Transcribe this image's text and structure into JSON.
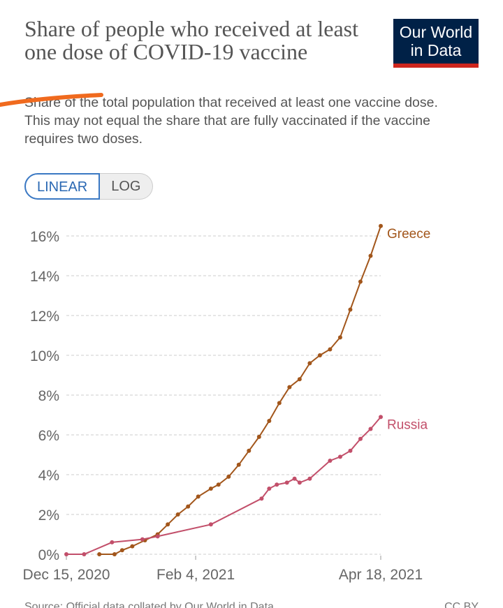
{
  "chart_data": {
    "type": "line",
    "title": "Share of people who received at least one dose of COVID-19 vaccine",
    "subtitle": "Share of the total population that received at least one vaccine dose. This may not equal the share that are fully vaccinated if the vaccine requires two doses.",
    "logo": "Our World in Data",
    "buttons": [
      "LINEAR",
      "LOG"
    ],
    "source": "Source: Official data collated by Our World in Data",
    "license": "CC BY",
    "xlim": [
      "2020-12-15",
      "2021-04-18"
    ],
    "xticks": [
      {
        "value": "2020-12-15",
        "label": "Dec 15, 2020"
      },
      {
        "value": "2021-02-04",
        "label": "Feb 4, 2021"
      },
      {
        "value": "2021-04-18",
        "label": "Apr 18, 2021"
      }
    ],
    "ylim": [
      0,
      16.5
    ],
    "yticks": [
      {
        "value": 0,
        "label": "0%"
      },
      {
        "value": 2,
        "label": "2%"
      },
      {
        "value": 4,
        "label": "4%"
      },
      {
        "value": 6,
        "label": "6%"
      },
      {
        "value": 8,
        "label": "8%"
      },
      {
        "value": 10,
        "label": "10%"
      },
      {
        "value": 12,
        "label": "12%"
      },
      {
        "value": 14,
        "label": "14%"
      },
      {
        "value": 16,
        "label": "16%"
      }
    ],
    "grid": true,
    "series": [
      {
        "name": "Greece",
        "color": "#a2561b",
        "x": [
          "2020-12-28",
          "2021-01-03",
          "2021-01-06",
          "2021-01-10",
          "2021-01-15",
          "2021-01-20",
          "2021-01-24",
          "2021-01-28",
          "2021-02-01",
          "2021-02-05",
          "2021-02-10",
          "2021-02-13",
          "2021-02-17",
          "2021-02-21",
          "2021-02-25",
          "2021-03-01",
          "2021-03-05",
          "2021-03-09",
          "2021-03-13",
          "2021-03-17",
          "2021-03-21",
          "2021-03-25",
          "2021-03-29",
          "2021-04-02",
          "2021-04-06",
          "2021-04-10",
          "2021-04-14",
          "2021-04-18"
        ],
        "values": [
          0,
          0,
          0.2,
          0.4,
          0.7,
          1.0,
          1.5,
          2.0,
          2.4,
          2.9,
          3.3,
          3.5,
          3.9,
          4.5,
          5.2,
          5.9,
          6.7,
          7.6,
          8.4,
          8.8,
          9.6,
          10.0,
          10.3,
          10.9,
          12.3,
          13.7,
          15.0,
          16.5
        ]
      },
      {
        "name": "Russia",
        "color": "#c24f6a",
        "x": [
          "2020-12-15",
          "2020-12-22",
          "2021-01-02",
          "2021-01-14",
          "2021-01-20",
          "2021-02-10",
          "2021-03-02",
          "2021-03-05",
          "2021-03-08",
          "2021-03-12",
          "2021-03-15",
          "2021-03-17",
          "2021-03-21",
          "2021-03-29",
          "2021-04-02",
          "2021-04-06",
          "2021-04-10",
          "2021-04-14",
          "2021-04-18"
        ],
        "values": [
          0,
          0,
          0.6,
          0.75,
          0.9,
          1.5,
          2.8,
          3.3,
          3.5,
          3.6,
          3.8,
          3.6,
          3.8,
          4.7,
          4.9,
          5.2,
          5.8,
          6.3,
          6.9
        ]
      }
    ]
  }
}
